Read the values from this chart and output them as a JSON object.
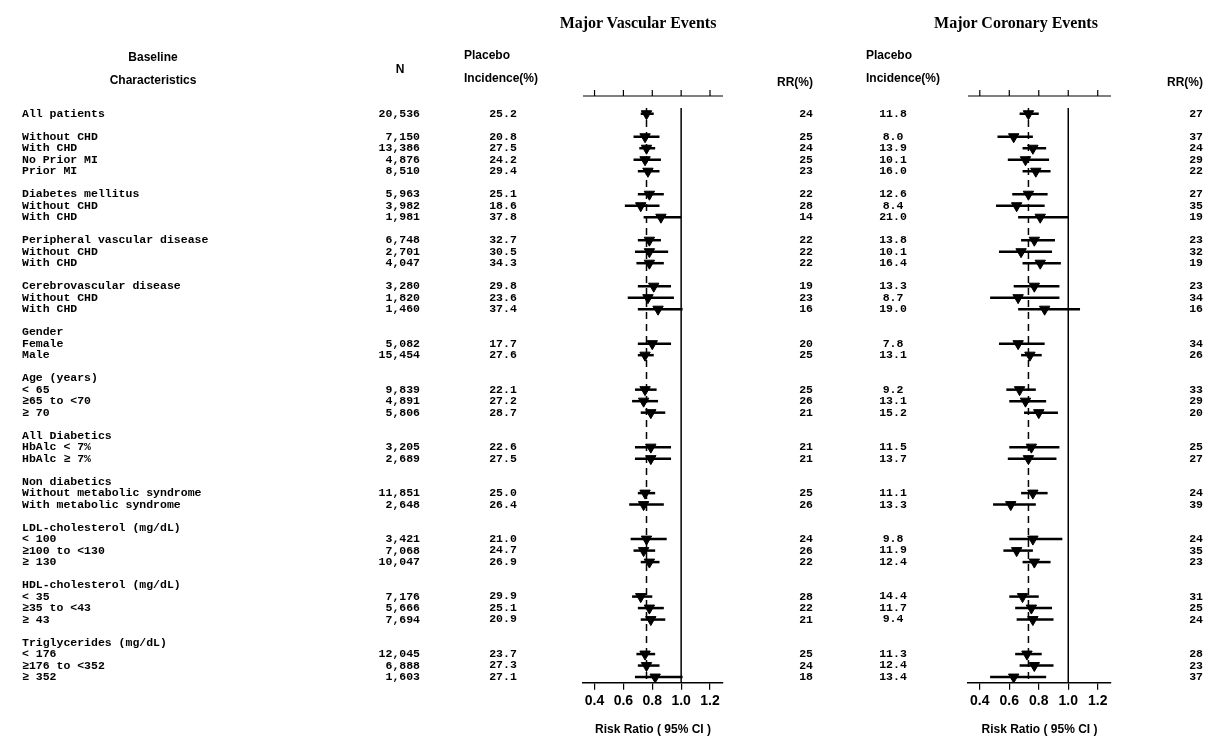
{
  "chart_data": [
    {
      "type": "other",
      "title": "Baseline Characteristics",
      "xlabel": "N",
      "categories": [
        "All patients",
        null,
        "Without CHD",
        "With CHD",
        "No Prior MI",
        "Prior MI",
        null,
        "Diabetes mellitus",
        "Without CHD",
        "With CHD",
        null,
        "Peripheral vascular disease",
        "Without CHD",
        "With CHD",
        null,
        "Cerebrovascular disease",
        "Without CHD",
        "With CHD",
        null,
        "Gender",
        "Female",
        "Male",
        null,
        "Age (years)",
        "< 65",
        "≥65 to <70",
        "≥ 70",
        null,
        "All Diabetics",
        "HbAlc < 7%",
        "HbAlc ≥ 7%",
        null,
        "Non diabetics",
        "Without metabolic syndrome",
        "With metabolic syndrome",
        null,
        "LDL-cholesterol (mg/dL)",
        "< 100",
        "≥100 to <130",
        "≥ 130",
        null,
        "HDL-cholesterol (mg/dL)",
        "< 35",
        "≥35 to <43",
        "≥ 43",
        null,
        "Triglycerides (mg/dL)",
        "< 176",
        "≥176 to <352",
        "≥ 352"
      ],
      "values": [
        20536,
        null,
        7150,
        13386,
        4876,
        8510,
        null,
        5963,
        3982,
        1981,
        null,
        6748,
        2701,
        4047,
        null,
        3280,
        1820,
        1460,
        null,
        null,
        5082,
        15454,
        null,
        null,
        9839,
        4891,
        5806,
        null,
        null,
        3205,
        2689,
        null,
        null,
        11851,
        2648,
        null,
        null,
        3421,
        7068,
        10047,
        null,
        null,
        7176,
        5666,
        7694,
        null,
        null,
        12045,
        6888,
        1603
      ],
      "value_labels": [
        "20,536",
        null,
        "7,150",
        "13,386",
        "4,876",
        "8,510",
        null,
        "5,963",
        "3,982",
        "1,981",
        null,
        "6,748",
        "2,701",
        "4,047",
        null,
        "3,280",
        "1,820",
        "1,460",
        null,
        null,
        "5,082",
        "15,454",
        null,
        null,
        "9,839",
        "4,891",
        "5,806",
        null,
        null,
        "3,205",
        "2,689",
        null,
        null,
        "11,851",
        "2,648",
        null,
        null,
        "3,421",
        "7,068",
        "10,047",
        null,
        null,
        "7,176",
        "5,666",
        "7,694",
        null,
        null,
        "12,045",
        "6,888",
        "1,603"
      ]
    },
    {
      "type": "scatter",
      "orientation": "horizontal",
      "title": "Major Vascular Events",
      "y2label": "Placebo Incidence(%)",
      "xlabel": "Risk Ratio ( 95% CI )",
      "marker": "triangle",
      "color": "#000000",
      "tick_labels": "x",
      "categories": [
        null,
        null,
        null,
        null,
        null,
        null,
        null,
        null,
        null,
        null,
        null,
        null,
        null,
        null,
        null,
        null,
        null,
        null,
        null,
        null,
        null,
        null,
        null,
        null,
        null,
        null,
        null,
        null,
        null,
        null,
        null,
        null,
        null,
        null,
        null,
        null,
        null,
        null,
        null,
        null,
        null,
        null,
        null,
        null,
        null,
        null,
        null,
        null,
        null,
        null
      ],
      "y2_categories": [
        "25.2",
        null,
        "20.8",
        "27.5",
        "24.2",
        "29.4",
        null,
        "25.1",
        "18.6",
        "37.8",
        null,
        "32.7",
        "30.5",
        "34.3",
        null,
        "29.8",
        "23.6",
        "37.4",
        null,
        null,
        "17.7",
        "27.6",
        null,
        null,
        "22.1",
        "27.2",
        "28.7",
        null,
        null,
        "22.6",
        "27.5",
        null,
        null,
        "25.0",
        "26.4",
        null,
        null,
        "21.0",
        "24.7",
        "26.9",
        null,
        null,
        "29.9",
        "25.1",
        "20.9",
        null,
        null,
        "23.7",
        "27.3",
        "27.1"
      ],
      "values": [
        0.76,
        null,
        0.75,
        0.76,
        0.75,
        0.77,
        null,
        0.78,
        0.72,
        0.86,
        null,
        0.78,
        0.78,
        0.78,
        null,
        0.81,
        0.77,
        0.84,
        null,
        null,
        0.8,
        0.75,
        null,
        null,
        0.75,
        0.74,
        0.79,
        null,
        null,
        0.79,
        0.79,
        null,
        null,
        0.75,
        0.74,
        null,
        null,
        0.76,
        0.74,
        0.78,
        null,
        null,
        0.72,
        0.78,
        0.79,
        null,
        null,
        0.75,
        0.76,
        0.82
      ],
      "errors": [
        [
          0.72,
          0.81
        ],
        null,
        [
          0.67,
          0.85
        ],
        [
          0.71,
          0.82
        ],
        [
          0.67,
          0.86
        ],
        [
          0.7,
          0.85
        ],
        null,
        [
          0.7,
          0.88
        ],
        [
          0.61,
          0.85
        ],
        [
          0.74,
          1.0
        ],
        null,
        [
          0.7,
          0.86
        ],
        [
          0.68,
          0.91
        ],
        [
          0.69,
          0.88
        ],
        null,
        [
          0.7,
          0.93
        ],
        [
          0.63,
          0.95
        ],
        [
          0.7,
          1.01
        ],
        null,
        null,
        [
          0.7,
          0.93
        ],
        [
          0.7,
          0.81
        ],
        null,
        null,
        [
          0.68,
          0.83
        ],
        [
          0.66,
          0.84
        ],
        [
          0.72,
          0.89
        ],
        null,
        null,
        [
          0.68,
          0.93
        ],
        [
          0.68,
          0.93
        ],
        null,
        null,
        [
          0.7,
          0.82
        ],
        [
          0.64,
          0.88
        ],
        null,
        null,
        [
          0.65,
          0.9
        ],
        [
          0.67,
          0.82
        ],
        [
          0.72,
          0.85
        ],
        null,
        null,
        [
          0.66,
          0.8
        ],
        [
          0.7,
          0.88
        ],
        [
          0.72,
          0.89
        ],
        null,
        null,
        [
          0.69,
          0.82
        ],
        [
          0.7,
          0.85
        ],
        [
          0.68,
          1.01
        ]
      ],
      "xlim": [
        0.32,
        1.29
      ],
      "xticks": [
        {
          "value": 0.4,
          "label": "0.4"
        },
        {
          "value": 0.6,
          "label": "0.6"
        },
        {
          "value": 0.8,
          "label": "0.8"
        },
        {
          "value": 1,
          "label": "1.0"
        },
        {
          "value": 1.2,
          "label": "1.2"
        }
      ],
      "ref_lines": [
        {
          "axis": "x",
          "value": 1,
          "line_style": "solid"
        },
        {
          "axis": "x",
          "value": 0.76,
          "line_style": "dashed"
        }
      ]
    },
    {
      "type": "other",
      "title": "RR(%)",
      "data_labels": true,
      "values": [
        24,
        null,
        25,
        24,
        25,
        23,
        null,
        22,
        28,
        14,
        null,
        22,
        22,
        22,
        null,
        19,
        23,
        16,
        null,
        null,
        20,
        25,
        null,
        null,
        25,
        26,
        21,
        null,
        null,
        21,
        21,
        null,
        null,
        25,
        26,
        null,
        null,
        24,
        26,
        22,
        null,
        null,
        28,
        22,
        21,
        null,
        null,
        25,
        24,
        18
      ]
    },
    {
      "type": "scatter",
      "orientation": "horizontal",
      "title": "Major Coronary Events",
      "y2label": "Placebo Incidence(%)",
      "xlabel": "Risk Ratio ( 95% CI )",
      "marker": "triangle",
      "color": "#000000",
      "tick_labels": "x",
      "categories": [
        null,
        null,
        null,
        null,
        null,
        null,
        null,
        null,
        null,
        null,
        null,
        null,
        null,
        null,
        null,
        null,
        null,
        null,
        null,
        null,
        null,
        null,
        null,
        null,
        null,
        null,
        null,
        null,
        null,
        null,
        null,
        null,
        null,
        null,
        null,
        null,
        null,
        null,
        null,
        null,
        null,
        null,
        null,
        null,
        null,
        null,
        null,
        null,
        null,
        null
      ],
      "y2_categories": [
        "11.8",
        null,
        "8.0",
        "13.9",
        "10.1",
        "16.0",
        null,
        "12.6",
        "8.4",
        "21.0",
        null,
        "13.8",
        "10.1",
        "16.4",
        null,
        "13.3",
        "8.7",
        "19.0",
        null,
        null,
        "7.8",
        "13.1",
        null,
        null,
        "9.2",
        "13.1",
        "15.2",
        null,
        null,
        "11.5",
        "13.7",
        null,
        null,
        "11.1",
        "13.3",
        null,
        null,
        "9.8",
        "11.9",
        "12.4",
        null,
        null,
        "14.4",
        "11.7",
        "9.4",
        null,
        null,
        "11.3",
        "12.4",
        "13.4"
      ],
      "values": [
        0.73,
        null,
        0.63,
        0.76,
        0.71,
        0.78,
        null,
        0.73,
        0.65,
        0.81,
        null,
        0.77,
        0.68,
        0.81,
        null,
        0.77,
        0.66,
        0.84,
        null,
        null,
        0.66,
        0.74,
        null,
        null,
        0.67,
        0.71,
        0.8,
        null,
        null,
        0.75,
        0.73,
        null,
        null,
        0.76,
        0.61,
        null,
        null,
        0.76,
        0.65,
        0.77,
        null,
        null,
        0.69,
        0.75,
        0.76,
        null,
        null,
        0.72,
        0.77,
        0.63
      ],
      "errors": [
        [
          0.67,
          0.8
        ],
        null,
        [
          0.52,
          0.76
        ],
        [
          0.69,
          0.85
        ],
        [
          0.59,
          0.87
        ],
        [
          0.69,
          0.88
        ],
        null,
        [
          0.62,
          0.86
        ],
        [
          0.51,
          0.84
        ],
        [
          0.66,
          1.0
        ],
        null,
        [
          0.68,
          0.91
        ],
        [
          0.53,
          0.89
        ],
        [
          0.69,
          0.95
        ],
        null,
        [
          0.63,
          0.94
        ],
        [
          0.47,
          0.94
        ],
        [
          0.66,
          1.08
        ],
        null,
        null,
        [
          0.53,
          0.84
        ],
        [
          0.68,
          0.82
        ],
        null,
        null,
        [
          0.58,
          0.78
        ],
        [
          0.6,
          0.85
        ],
        [
          0.7,
          0.93
        ],
        null,
        null,
        [
          0.6,
          0.94
        ],
        [
          0.59,
          0.92
        ],
        null,
        null,
        [
          0.68,
          0.86
        ],
        [
          0.49,
          0.78
        ],
        null,
        null,
        [
          0.6,
          0.96
        ],
        [
          0.56,
          0.76
        ],
        [
          0.69,
          0.88
        ],
        null,
        null,
        [
          0.6,
          0.8
        ],
        [
          0.64,
          0.89
        ],
        [
          0.65,
          0.9
        ],
        null,
        null,
        [
          0.64,
          0.82
        ],
        [
          0.67,
          0.9
        ],
        [
          0.47,
          0.85
        ]
      ],
      "xlim": [
        0.32,
        1.29
      ],
      "xticks": [
        {
          "value": 0.4,
          "label": "0.4"
        },
        {
          "value": 0.6,
          "label": "0.6"
        },
        {
          "value": 0.8,
          "label": "0.8"
        },
        {
          "value": 1,
          "label": "1.0"
        },
        {
          "value": 1.2,
          "label": "1.2"
        }
      ],
      "ref_lines": [
        {
          "axis": "x",
          "value": 1,
          "line_style": "solid"
        },
        {
          "axis": "x",
          "value": 0.73,
          "line_style": "dashed"
        }
      ]
    },
    {
      "type": "other",
      "title": "RR(%)",
      "data_labels": true,
      "values": [
        27,
        null,
        37,
        24,
        29,
        22,
        null,
        27,
        35,
        19,
        null,
        23,
        32,
        19,
        null,
        23,
        34,
        16,
        null,
        null,
        34,
        26,
        null,
        null,
        33,
        29,
        20,
        null,
        null,
        25,
        27,
        null,
        null,
        24,
        39,
        null,
        null,
        24,
        35,
        23,
        null,
        null,
        31,
        25,
        24,
        null,
        null,
        28,
        23,
        37
      ]
    }
  ]
}
